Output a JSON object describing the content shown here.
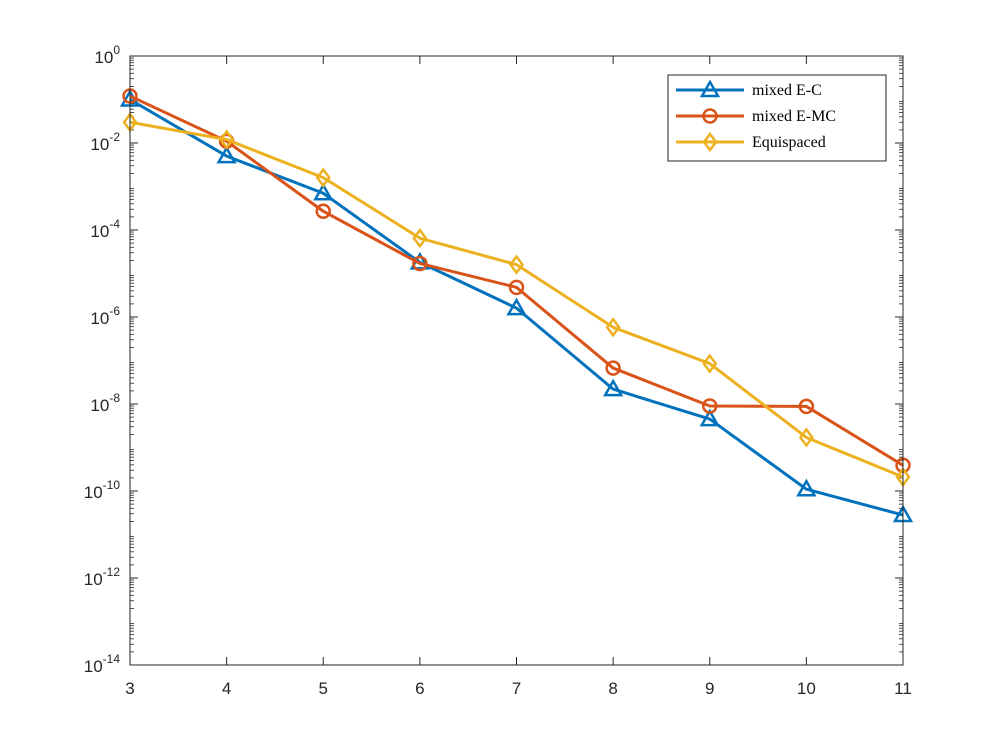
{
  "chart_data": {
    "type": "line",
    "title": "",
    "xlabel": "",
    "ylabel": "",
    "yscale": "log",
    "xlim": [
      3,
      11
    ],
    "ylim_exponents": [
      -14,
      0
    ],
    "x": [
      3,
      4,
      5,
      6,
      7,
      8,
      9,
      10,
      11
    ],
    "x_tick_labels": [
      "3",
      "4",
      "5",
      "6",
      "7",
      "8",
      "9",
      "10",
      "11"
    ],
    "y_ticks": [
      {
        "exp": -14,
        "base": "10",
        "sup": "-14"
      },
      {
        "exp": -12,
        "base": "10",
        "sup": "-12"
      },
      {
        "exp": -10,
        "base": "10",
        "sup": "-10"
      },
      {
        "exp": -8,
        "base": "10",
        "sup": "-8"
      },
      {
        "exp": -6,
        "base": "10",
        "sup": "-6"
      },
      {
        "exp": -4,
        "base": "10",
        "sup": "-4"
      },
      {
        "exp": -2,
        "base": "10",
        "sup": "-2"
      },
      {
        "exp": 0,
        "base": "10",
        "sup": "0"
      }
    ],
    "grid": false,
    "legend_position": "top-right",
    "series": [
      {
        "name": "mixed E-C",
        "color": "#0072BD",
        "marker": "triangle",
        "values": [
          0.1,
          0.005,
          0.0007,
          1.8e-05,
          1.6e-06,
          2.2e-08,
          4.5e-09,
          1.1e-10,
          2.8e-11
        ]
      },
      {
        "name": "mixed E-MC",
        "color": "#D95319",
        "marker": "circle",
        "values": [
          0.12,
          0.011,
          0.00027,
          1.7e-05,
          4.8e-06,
          6.7e-08,
          9e-09,
          8.8e-09,
          3.9e-10
        ]
      },
      {
        "name": "Equispaced",
        "color": "#EDB120",
        "marker": "diamond",
        "values": [
          0.03,
          0.012,
          0.0016,
          6.5e-05,
          1.6e-05,
          5.8e-07,
          8.5e-08,
          1.7e-09,
          2.1e-10
        ]
      }
    ]
  }
}
